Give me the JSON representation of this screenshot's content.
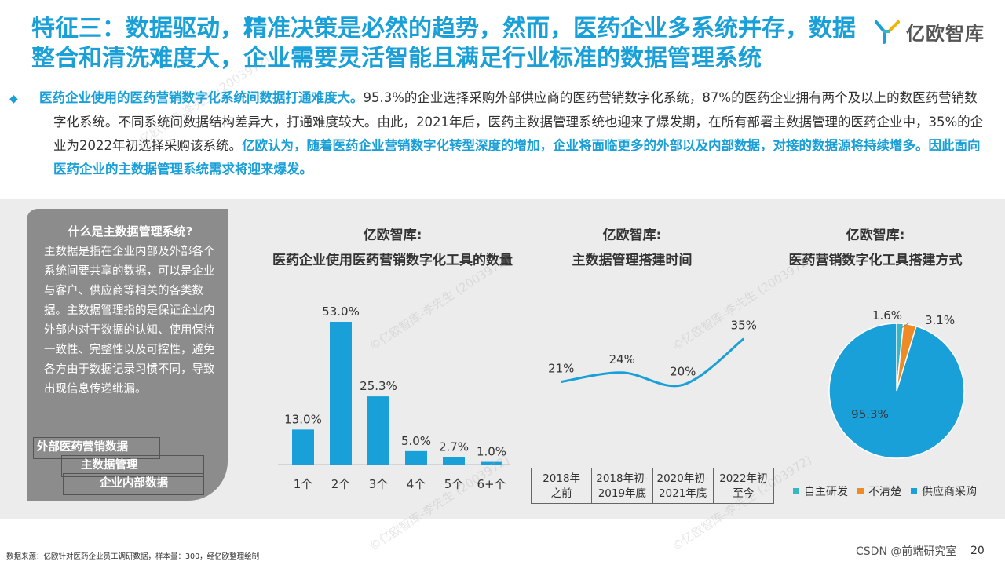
{
  "title": "特征三：数据驱动，精准决策是必然的趋势，然而，医药企业多系统并存，数据整合和清洗难度大，企业需要灵活智能且满足行业标准的数据管理系统",
  "logo": {
    "text": "亿欧智库",
    "icon": "yiou-logo-icon"
  },
  "intro": {
    "bullet": "◆",
    "highlight1": "医药企业使用的医药营销数字化系统间数据打通难度大。",
    "body": "95.3%的企业选择采购外部供应商的医药营销数字化系统，87%的医药企业拥有两个及以上的数医药营销数字化系统。不同系统间数据结构差异大，打通难度较大。由此，2021年后，医药主数据管理系统也迎来了爆发期，在所有部署主数据管理的医药企业中，35%的企业为2022年初选择采购该系统。",
    "highlight2": "亿欧认为，随着医药企业营销数字化转型深度的增加，企业将面临更多的外部以及内部数据，对接的数据源将持续增多。因此面向医药企业的主数据管理系统需求将迎来爆发。"
  },
  "sidebox": {
    "title": "什么是主数据管理系统?",
    "body": "主数据是指在企业内部及外部各个系统间要共享的数据，可以是企业与客户、供应商等相关的各类数据。主数据管理指的是保证企业内外部内对于数据的认知、使用保持一致性、完整性以及可控性，避免各方由于数据记录习惯不同，导致出现信息传递纰漏。",
    "chips": [
      "外部医药营销数据",
      "主数据管理",
      "企业内部数据"
    ]
  },
  "chart_data": [
    {
      "type": "bar",
      "title": "亿欧智库:",
      "subtitle": "医药企业使用医药营销数字化工具的数量",
      "categories": [
        "1个",
        "2个",
        "3个",
        "4个",
        "5个",
        "6+个"
      ],
      "values": [
        13.0,
        53.0,
        25.3,
        5.0,
        2.7,
        1.0
      ],
      "value_labels": [
        "13.0%",
        "53.0%",
        "25.3%",
        "5.0%",
        "2.7%",
        "1.0%"
      ],
      "unit": "%",
      "ylim": [
        0,
        60
      ],
      "color": "#1aa0d8"
    },
    {
      "type": "line",
      "title": "亿欧智库:",
      "subtitle": "主数据管理搭建时间",
      "categories": [
        "2018年之前",
        "2018年初-2019年底",
        "2020年初-2021年底",
        "2022年初至今"
      ],
      "category_lines": [
        [
          "2018年",
          "之前"
        ],
        [
          "2018年初-",
          "2019年底"
        ],
        [
          "2020年初-",
          "2021年底"
        ],
        [
          "2022年初",
          "至今"
        ]
      ],
      "values": [
        21,
        24,
        20,
        35
      ],
      "value_labels": [
        "21%",
        "24%",
        "20%",
        "35%"
      ],
      "unit": "%",
      "ylim": [
        0,
        40
      ],
      "color": "#1aa0d8"
    },
    {
      "type": "pie",
      "title": "亿欧智库:",
      "subtitle": "医药营销数字化工具搭建方式",
      "slices": [
        {
          "name": "自主研发",
          "value": 1.6,
          "label": "1.6%",
          "color": "#35b7c4"
        },
        {
          "name": "不清楚",
          "value": 3.1,
          "label": "3.1%",
          "color": "#f08a24"
        },
        {
          "name": "供应商采购",
          "value": 95.3,
          "label": "95.3%",
          "color": "#1aa0d8"
        }
      ]
    }
  ],
  "footer": {
    "source": "数据来源：亿欧针对医药企业员工调研数据，样本量：300，经亿欧整理绘制",
    "csdn": "CSDN @前端研究室",
    "page": "20"
  },
  "watermark": "©亿欧智库-李先生 (2003972)"
}
